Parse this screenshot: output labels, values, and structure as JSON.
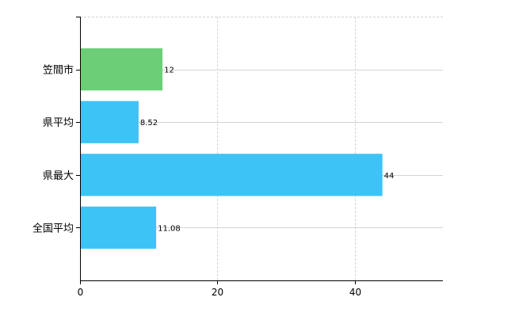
{
  "chart_data": {
    "type": "bar",
    "orientation": "horizontal",
    "categories": [
      "笠間市",
      "県平均",
      "県最大",
      "全国平均"
    ],
    "values": [
      12,
      8.52,
      44,
      11.08
    ],
    "data_labels": [
      "12",
      "8.52",
      "44",
      "11.08"
    ],
    "bar_colors": [
      "#6ccf78",
      "#3ec3f7",
      "#3ec3f7",
      "#3ec3f7"
    ],
    "xlim": [
      0,
      52.8
    ],
    "xticks": [
      0,
      20,
      40
    ],
    "xtick_labels": [
      "0",
      "20",
      "40"
    ],
    "grid": true,
    "grid_color": "#d4d4d4",
    "title": "",
    "xlabel": "",
    "ylabel": ""
  }
}
